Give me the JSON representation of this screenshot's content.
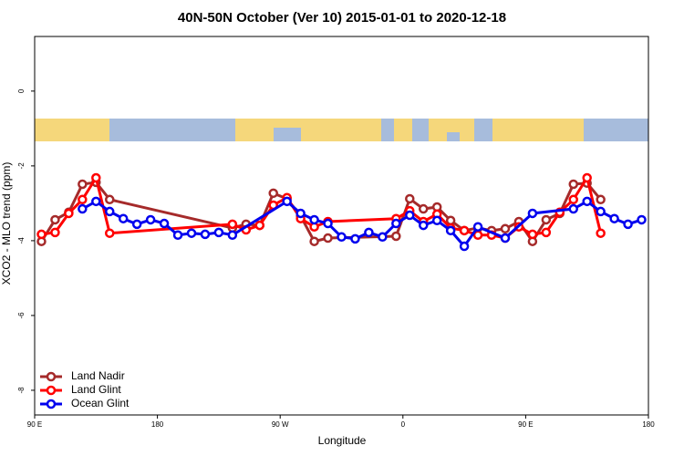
{
  "chart_data": {
    "type": "line",
    "title": "40N-50N October (Ver 10)   2015-01-01 to 2020-12-18",
    "xlabel": "Longitude",
    "ylabel": "XCO2 - MLO trend (ppm)",
    "xlim": [
      90,
      540
    ],
    "ylim": [
      -8.66,
      1.46
    ],
    "xticks": [
      {
        "value": 90,
        "label": "90 E"
      },
      180,
      {
        "value": 270,
        "label": "90 W"
      },
      {
        "value": 360,
        "label": "0"
      },
      {
        "value": 450,
        "label": "90 E"
      },
      {
        "value": 540,
        "label": "180"
      }
    ],
    "yticks": [
      0,
      -2,
      -4,
      -6,
      -8
    ],
    "legend": "lower left",
    "series": [
      {
        "name": "Land Nadir",
        "color": "#a52a2a",
        "x": [
          95,
          105,
          115,
          125,
          135,
          145,
          235,
          245,
          255,
          265,
          275,
          285,
          295,
          305,
          355,
          365,
          375,
          385,
          395,
          405,
          415,
          425,
          435,
          445,
          455,
          465,
          475,
          485,
          495,
          505
        ],
        "values": [
          -4.02,
          -3.44,
          -3.24,
          -2.49,
          -2.44,
          -2.9,
          -3.66,
          -3.56,
          -3.59,
          -2.73,
          -2.88,
          -3.34,
          -4.02,
          -3.93,
          -3.88,
          -2.88,
          -3.15,
          -3.1,
          -3.46,
          -3.73,
          -3.66,
          -3.73,
          -3.68,
          -3.49,
          -4.02,
          -3.44,
          -3.27,
          -2.49,
          -2.46,
          -2.9
        ]
      },
      {
        "name": "Land Glint",
        "color": "#ff0000",
        "x": [
          95,
          105,
          115,
          125,
          135,
          145,
          235,
          245,
          255,
          265,
          275,
          285,
          295,
          305,
          355,
          365,
          375,
          385,
          395,
          405,
          415,
          425,
          435,
          445,
          455,
          465,
          475,
          485,
          495,
          505
        ],
        "values": [
          -3.83,
          -3.78,
          -3.27,
          -2.9,
          -2.32,
          -3.8,
          -3.56,
          -3.71,
          -3.59,
          -3.05,
          -2.85,
          -3.41,
          -3.63,
          -3.49,
          -3.41,
          -3.2,
          -3.49,
          -3.29,
          -3.66,
          -3.73,
          -3.85,
          -3.85,
          -3.93,
          -3.63,
          -3.83,
          -3.78,
          -3.24,
          -2.9,
          -2.32,
          -3.8
        ]
      },
      {
        "name": "Ocean Glint",
        "color": "#0000ee",
        "x": [
          125,
          135,
          145,
          155,
          165,
          175,
          185,
          195,
          205,
          215,
          225,
          235,
          275,
          285,
          295,
          305,
          315,
          325,
          335,
          345,
          355,
          365,
          375,
          385,
          395,
          405,
          415,
          435,
          455,
          485,
          495,
          505,
          515,
          525,
          535
        ],
        "values": [
          -3.15,
          -2.95,
          -3.22,
          -3.41,
          -3.56,
          -3.44,
          -3.54,
          -3.85,
          -3.8,
          -3.83,
          -3.78,
          -3.85,
          -2.95,
          -3.27,
          -3.44,
          -3.54,
          -3.9,
          -3.95,
          -3.78,
          -3.9,
          -3.54,
          -3.32,
          -3.59,
          -3.46,
          -3.73,
          -4.15,
          -3.63,
          -3.93,
          -3.27,
          -3.15,
          -2.95,
          -3.22,
          -3.41,
          -3.56,
          -3.44
        ]
      }
    ]
  }
}
